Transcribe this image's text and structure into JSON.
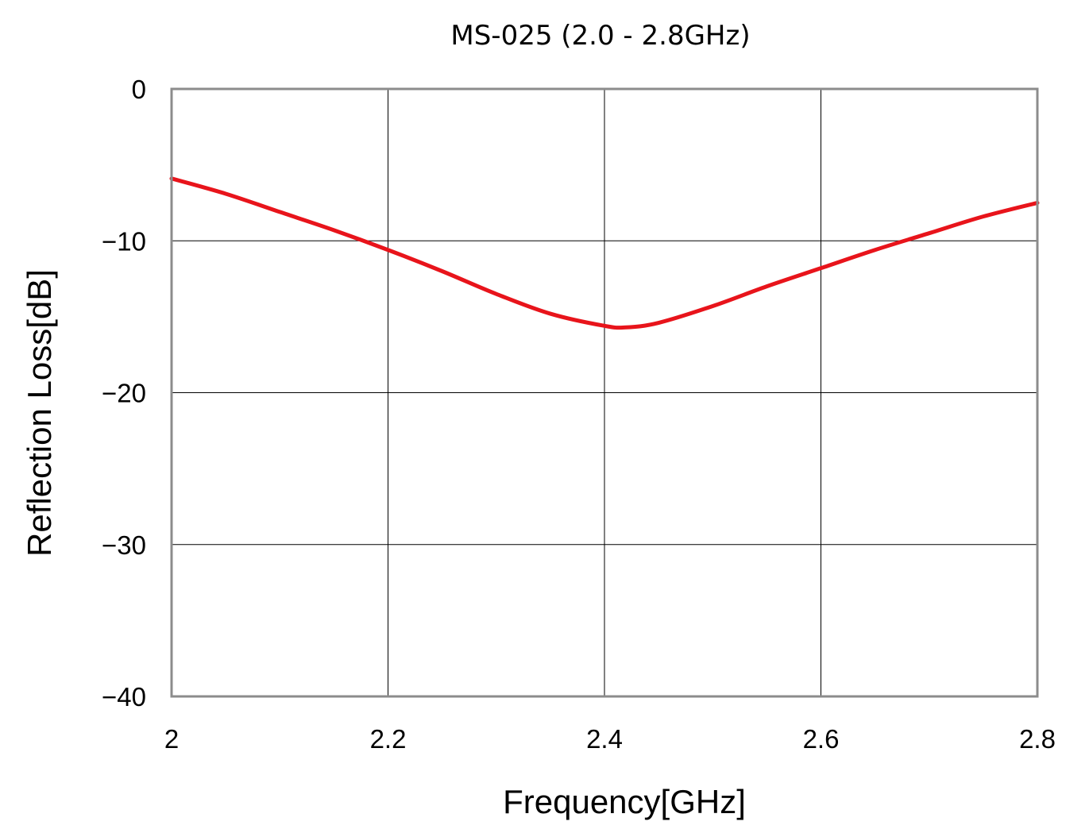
{
  "chart_data": {
    "type": "line",
    "title": "MS-025 (2.0 - 2.8GHz)",
    "xlabel": "Frequency[GHz]",
    "ylabel": "Reflection Loss[dB]",
    "xlim": [
      2.0,
      2.8
    ],
    "ylim": [
      -40,
      0
    ],
    "x_ticks": [
      "2",
      "2.2",
      "2.4",
      "2.6",
      "2.8"
    ],
    "y_ticks": [
      "0",
      "−10",
      "−20",
      "−30",
      "−40"
    ],
    "x_tick_values": [
      2.0,
      2.2,
      2.4,
      2.6,
      2.8
    ],
    "y_tick_values": [
      0,
      -10,
      -20,
      -30,
      -40
    ],
    "grid": true,
    "legend": "none",
    "series": [
      {
        "color": "#e8141b",
        "x": [
          2.0,
          2.05,
          2.1,
          2.15,
          2.2,
          2.25,
          2.3,
          2.35,
          2.4,
          2.42,
          2.45,
          2.5,
          2.55,
          2.6,
          2.65,
          2.7,
          2.75,
          2.8
        ],
        "y": [
          -5.9,
          -6.9,
          -8.1,
          -9.3,
          -10.6,
          -12.0,
          -13.5,
          -14.8,
          -15.6,
          -15.7,
          -15.4,
          -14.3,
          -13.0,
          -11.8,
          -10.6,
          -9.5,
          -8.4,
          -7.5
        ]
      }
    ]
  }
}
